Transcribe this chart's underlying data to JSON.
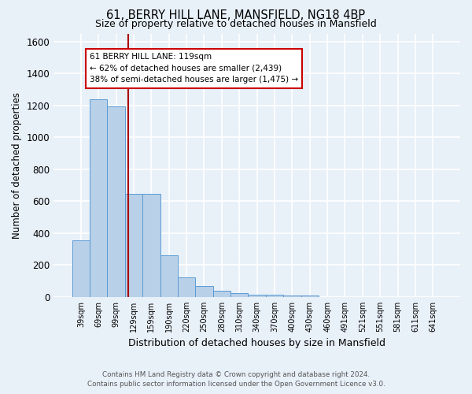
{
  "title": "61, BERRY HILL LANE, MANSFIELD, NG18 4BP",
  "subtitle": "Size of property relative to detached houses in Mansfield",
  "xlabel": "Distribution of detached houses by size in Mansfield",
  "ylabel": "Number of detached properties",
  "footer_line1": "Contains HM Land Registry data © Crown copyright and database right 2024.",
  "footer_line2": "Contains public sector information licensed under the Open Government Licence v3.0.",
  "categories": [
    "39sqm",
    "69sqm",
    "99sqm",
    "129sqm",
    "159sqm",
    "190sqm",
    "220sqm",
    "250sqm",
    "280sqm",
    "310sqm",
    "340sqm",
    "370sqm",
    "400sqm",
    "430sqm",
    "460sqm",
    "491sqm",
    "521sqm",
    "551sqm",
    "581sqm",
    "611sqm",
    "641sqm"
  ],
  "values": [
    355,
    1240,
    1195,
    645,
    645,
    260,
    125,
    70,
    40,
    25,
    15,
    15,
    10,
    10,
    0,
    0,
    0,
    0,
    0,
    0,
    0
  ],
  "bar_color": "#b8d0e8",
  "bar_edge_color": "#5b9bd5",
  "background_color": "#e8f0f8",
  "grid_color": "#ffffff",
  "red_line_x": 2.67,
  "annotation_text": "61 BERRY HILL LANE: 119sqm\n← 62% of detached houses are smaller (2,439)\n38% of semi-detached houses are larger (1,475) →",
  "annotation_box_color": "#ffffff",
  "annotation_box_edge": "#cc0000",
  "red_line_color": "#aa0000",
  "ylim": [
    0,
    1650
  ],
  "yticks": [
    0,
    200,
    400,
    600,
    800,
    1000,
    1200,
    1400,
    1600
  ]
}
